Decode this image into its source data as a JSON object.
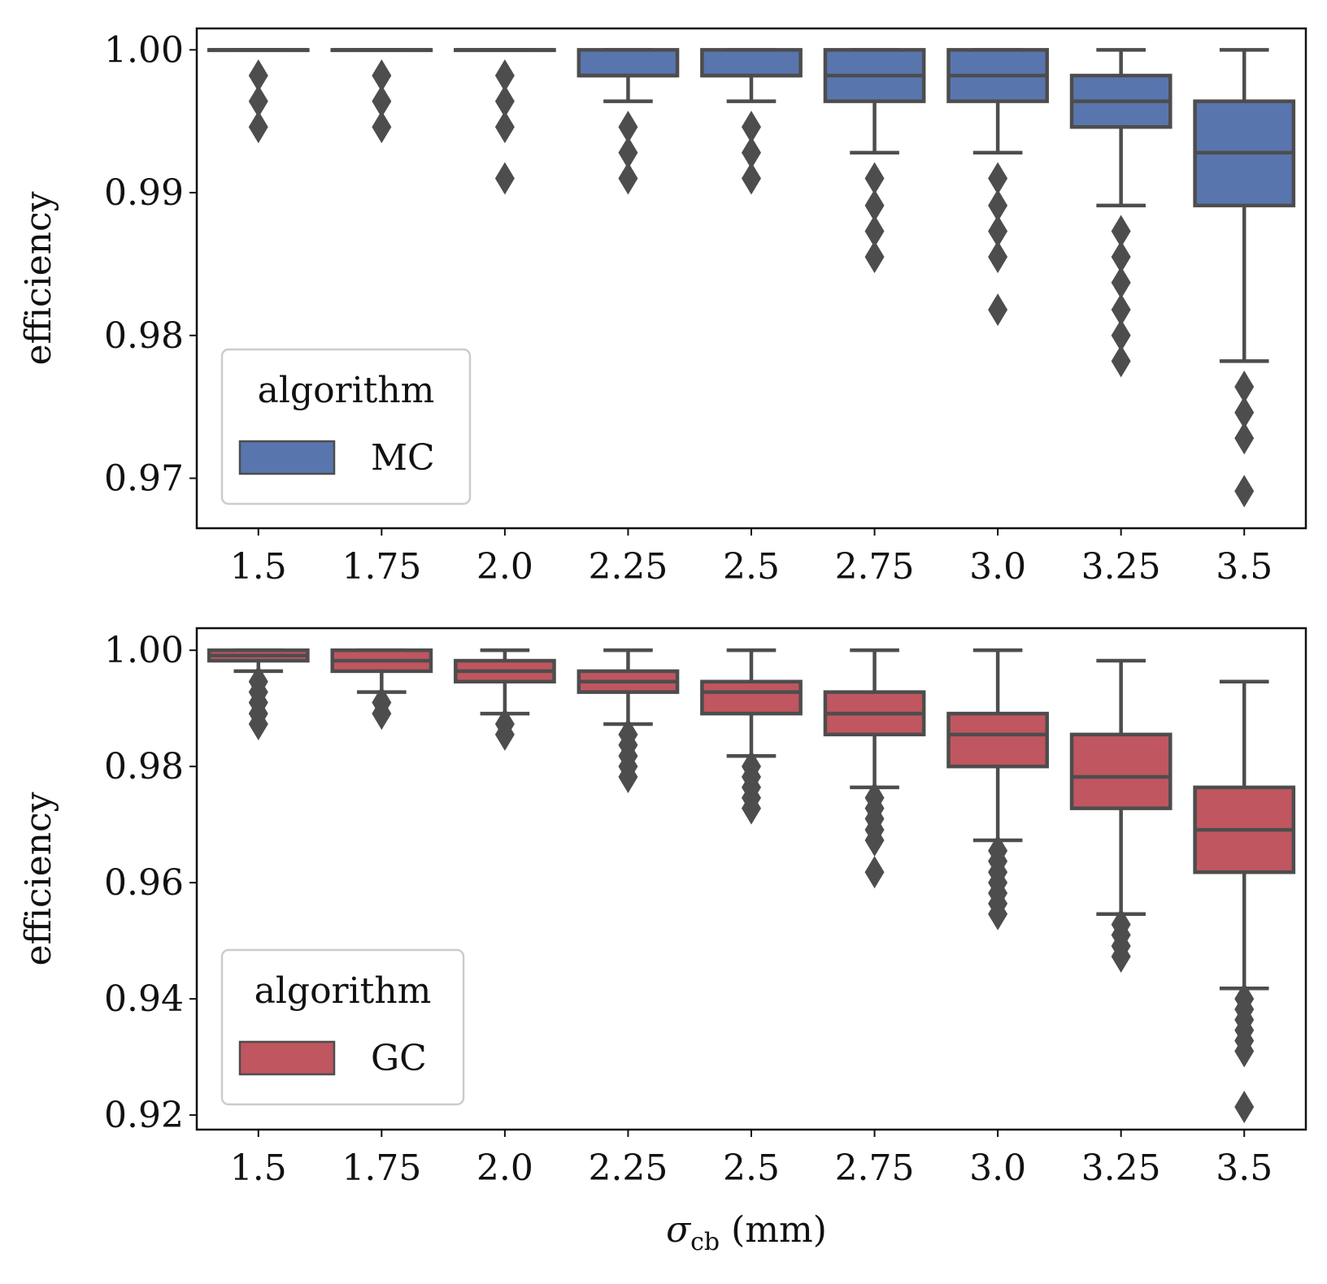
{
  "figure_xlabel": "σ",
  "figure_xlabel_sub": "cb",
  "figure_xlabel_unit": " (mm)",
  "chart_data": [
    {
      "type": "box",
      "title": "",
      "xlabel": "",
      "ylabel": "efficiency",
      "categories": [
        "1.5",
        "1.75",
        "2.0",
        "2.25",
        "2.5",
        "2.75",
        "3.0",
        "3.25",
        "3.5"
      ],
      "ylim": [
        0.9665,
        1.0015
      ],
      "yticks": [
        0.97,
        0.98,
        0.99,
        1.0
      ],
      "ytick_labels": [
        "0.97",
        "0.98",
        "0.99",
        "1.00"
      ],
      "legend": {
        "title": "algorithm",
        "label": "MC",
        "color": "#5975AE",
        "position": "lower-left"
      },
      "edge_color": "#4d4d4d",
      "boxes": [
        {
          "whislo": 1.0,
          "q1": 1.0,
          "med": 1.0,
          "q3": 1.0,
          "whishi": 1.0,
          "fliers": [
            0.9982,
            0.9964,
            0.9946
          ]
        },
        {
          "whislo": 1.0,
          "q1": 1.0,
          "med": 1.0,
          "q3": 1.0,
          "whishi": 1.0,
          "fliers": [
            0.9982,
            0.9964,
            0.9946
          ]
        },
        {
          "whislo": 1.0,
          "q1": 1.0,
          "med": 1.0,
          "q3": 1.0,
          "whishi": 1.0,
          "fliers": [
            0.9982,
            0.9964,
            0.9946,
            0.991
          ]
        },
        {
          "whislo": 0.9964,
          "q1": 0.9982,
          "med": 0.9982,
          "q3": 1.0,
          "whishi": 1.0,
          "fliers": [
            0.9946,
            0.9928,
            0.991
          ]
        },
        {
          "whislo": 0.9964,
          "q1": 0.9982,
          "med": 0.9982,
          "q3": 1.0,
          "whishi": 1.0,
          "fliers": [
            0.9946,
            0.9928,
            0.991
          ]
        },
        {
          "whislo": 0.9928,
          "q1": 0.9964,
          "med": 0.9982,
          "q3": 1.0,
          "whishi": 1.0,
          "fliers": [
            0.991,
            0.9891,
            0.9873,
            0.9855
          ]
        },
        {
          "whislo": 0.9928,
          "q1": 0.9964,
          "med": 0.9982,
          "q3": 1.0,
          "whishi": 1.0,
          "fliers": [
            0.991,
            0.9891,
            0.9873,
            0.9855,
            0.9818
          ]
        },
        {
          "whislo": 0.9891,
          "q1": 0.9946,
          "med": 0.9964,
          "q3": 0.9982,
          "whishi": 1.0,
          "fliers": [
            0.9873,
            0.9855,
            0.9837,
            0.9818,
            0.98,
            0.9782
          ]
        },
        {
          "whislo": 0.9782,
          "q1": 0.9891,
          "med": 0.9928,
          "q3": 0.9964,
          "whishi": 1.0,
          "fliers": [
            0.9764,
            0.9746,
            0.9728,
            0.9691
          ]
        }
      ]
    },
    {
      "type": "box",
      "title": "",
      "xlabel": "σ_cb (mm)",
      "ylabel": "efficiency",
      "categories": [
        "1.5",
        "1.75",
        "2.0",
        "2.25",
        "2.5",
        "2.75",
        "3.0",
        "3.25",
        "3.5"
      ],
      "ylim": [
        0.9175,
        1.0038
      ],
      "yticks": [
        0.92,
        0.94,
        0.96,
        0.98,
        1.0
      ],
      "ytick_labels": [
        "0.92",
        "0.94",
        "0.96",
        "0.98",
        "1.00"
      ],
      "legend": {
        "title": "algorithm",
        "label": "GC",
        "color": "#C0565F",
        "position": "lower-left"
      },
      "edge_color": "#4d4d4d",
      "boxes": [
        {
          "whislo": 0.9964,
          "q1": 0.9982,
          "med": 0.9991,
          "q3": 1.0,
          "whishi": 1.0,
          "fliers": [
            0.9946,
            0.9928,
            0.991,
            0.9891,
            0.9873
          ]
        },
        {
          "whislo": 0.9928,
          "q1": 0.9964,
          "med": 0.9982,
          "q3": 1.0,
          "whishi": 1.0,
          "fliers": [
            0.991,
            0.9891
          ]
        },
        {
          "whislo": 0.9891,
          "q1": 0.9946,
          "med": 0.9964,
          "q3": 0.9982,
          "whishi": 1.0,
          "fliers": [
            0.9873,
            0.9855
          ]
        },
        {
          "whislo": 0.9873,
          "q1": 0.9928,
          "med": 0.9946,
          "q3": 0.9964,
          "whishi": 1.0,
          "fliers": [
            0.9855,
            0.9837,
            0.9818,
            0.98,
            0.9782
          ]
        },
        {
          "whislo": 0.9818,
          "q1": 0.9891,
          "med": 0.9928,
          "q3": 0.9946,
          "whishi": 1.0,
          "fliers": [
            0.98,
            0.9782,
            0.9764,
            0.9746,
            0.9728
          ]
        },
        {
          "whislo": 0.9764,
          "q1": 0.9855,
          "med": 0.9891,
          "q3": 0.9928,
          "whishi": 1.0,
          "fliers": [
            0.9746,
            0.9728,
            0.971,
            0.9691,
            0.9673,
            0.9618
          ]
        },
        {
          "whislo": 0.9673,
          "q1": 0.98,
          "med": 0.9855,
          "q3": 0.9891,
          "whishi": 1.0,
          "fliers": [
            0.9655,
            0.9637,
            0.9618,
            0.96,
            0.9582,
            0.9564,
            0.9546
          ]
        },
        {
          "whislo": 0.9546,
          "q1": 0.9728,
          "med": 0.9782,
          "q3": 0.9855,
          "whishi": 0.9982,
          "fliers": [
            0.9528,
            0.951,
            0.9491,
            0.9473
          ]
        },
        {
          "whislo": 0.9418,
          "q1": 0.9618,
          "med": 0.9691,
          "q3": 0.9764,
          "whishi": 0.9946,
          "fliers": [
            0.94,
            0.9382,
            0.9364,
            0.9346,
            0.9328,
            0.931,
            0.9214
          ]
        }
      ]
    }
  ]
}
